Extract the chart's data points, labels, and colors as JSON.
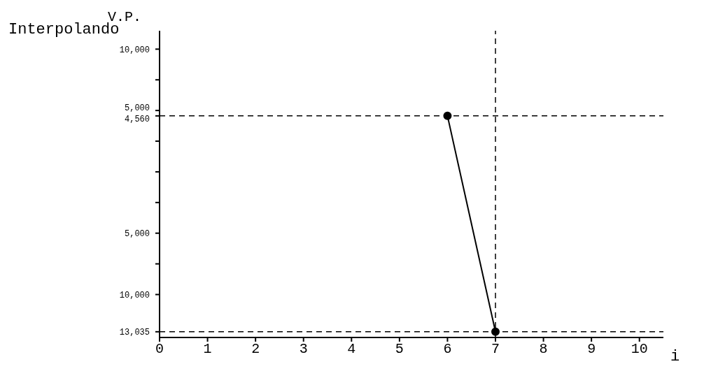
{
  "chart_data": {
    "type": "line",
    "annotations": [
      "Interpolando"
    ],
    "xlabel": "i",
    "ylabel": "V.P.",
    "x": [
      6,
      7
    ],
    "series": [
      {
        "color": "#000000",
        "values": [
          4560,
          -13035
        ]
      }
    ],
    "xlim": [
      0,
      10.5
    ],
    "xticks": [
      0,
      1,
      2,
      3,
      4,
      5,
      6,
      7,
      8,
      9,
      10
    ],
    "ylim": [
      -13500,
      11500
    ],
    "yticks": [
      {
        "value": 10000,
        "label": "10,000"
      },
      {
        "value": 7500,
        "label": null
      },
      {
        "value": 5000,
        "label": "5,000"
      },
      {
        "value": 4560,
        "label": "4,560"
      },
      {
        "value": 2500,
        "label": null
      },
      {
        "value": 0,
        "label": null
      },
      {
        "value": -2500,
        "label": null
      },
      {
        "value": -5000,
        "label": "5,000"
      },
      {
        "value": -7500,
        "label": null
      },
      {
        "value": -10000,
        "label": "10,000"
      },
      {
        "value": -13035,
        "label": "13,035"
      }
    ],
    "ref_lines": [
      {
        "axis": "y",
        "value": 4560,
        "line_style": "dashed"
      },
      {
        "axis": "y",
        "value": -13035,
        "line_style": "dashed"
      },
      {
        "axis": "x",
        "value": 7,
        "line_style": "dashed"
      }
    ],
    "marker": "circle",
    "grid": false,
    "legend": false
  }
}
